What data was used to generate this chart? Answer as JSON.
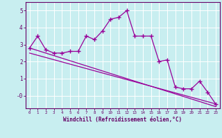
{
  "xlabel": "Windchill (Refroidissement éolien,°C)",
  "bg_color": "#c8eef0",
  "grid_color": "#ffffff",
  "line_color": "#990099",
  "x_data": [
    0,
    1,
    2,
    3,
    4,
    5,
    6,
    7,
    8,
    9,
    10,
    11,
    12,
    13,
    14,
    15,
    16,
    17,
    18,
    19,
    20,
    21,
    22,
    23
  ],
  "y_main": [
    2.8,
    3.5,
    2.7,
    2.5,
    2.5,
    2.6,
    2.6,
    3.5,
    3.3,
    3.8,
    4.5,
    4.6,
    5.0,
    3.5,
    3.5,
    3.5,
    2.0,
    2.1,
    0.5,
    0.4,
    0.4,
    0.85,
    0.2,
    -0.5
  ],
  "y_reg1": [
    2.8,
    2.65,
    2.5,
    2.35,
    2.2,
    2.05,
    1.9,
    1.75,
    1.6,
    1.45,
    1.3,
    1.15,
    1.0,
    0.85,
    0.7,
    0.55,
    0.4,
    0.25,
    0.1,
    -0.05,
    -0.2,
    -0.35,
    -0.5,
    -0.65
  ],
  "y_reg2": [
    2.5,
    2.37,
    2.24,
    2.11,
    1.98,
    1.85,
    1.72,
    1.59,
    1.46,
    1.33,
    1.2,
    1.07,
    0.94,
    0.81,
    0.68,
    0.55,
    0.42,
    0.29,
    0.16,
    0.03,
    -0.1,
    -0.23,
    -0.36,
    -0.49
  ],
  "ylim": [
    -0.75,
    5.5
  ],
  "xlim": [
    -0.5,
    23.5
  ],
  "xticks": [
    0,
    1,
    2,
    3,
    4,
    5,
    6,
    7,
    8,
    9,
    10,
    11,
    12,
    13,
    14,
    15,
    16,
    17,
    18,
    19,
    20,
    21,
    22,
    23
  ],
  "yticks": [
    0,
    1,
    2,
    3,
    4,
    5
  ],
  "ytick_labels": [
    "-0",
    "1",
    "2",
    "3",
    "4",
    "5"
  ]
}
